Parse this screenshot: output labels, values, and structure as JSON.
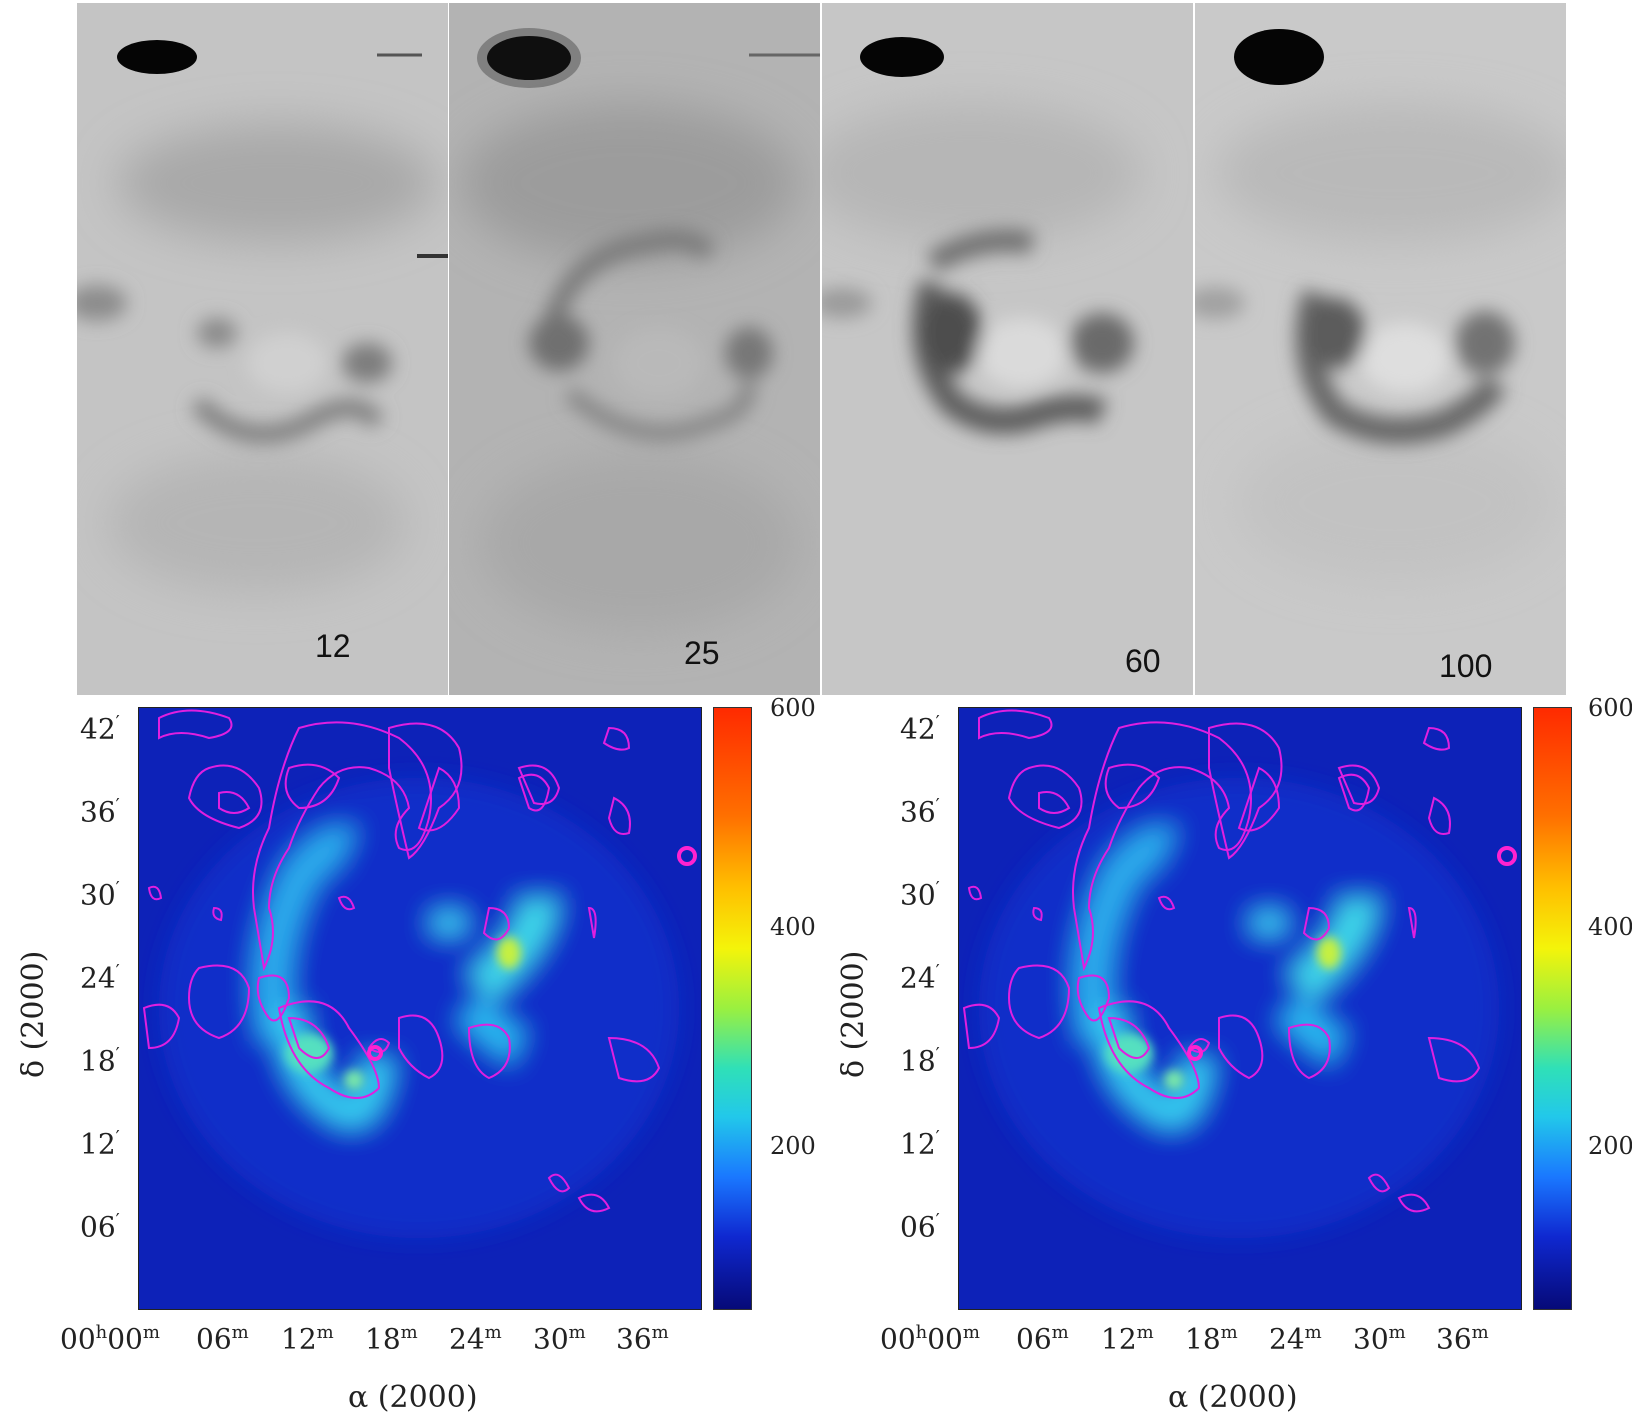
{
  "top_panels": {
    "labels": [
      "12",
      "25",
      "60",
      "100"
    ]
  },
  "maps": [
    {
      "y_ticks": [
        "42",
        "36",
        "30",
        "24",
        "18",
        "12",
        "06"
      ],
      "x_ticks": [
        {
          "main": "00",
          "sup1": "h",
          "tail": "00",
          "sup2": "m"
        },
        {
          "main": "06",
          "sup1": "m"
        },
        {
          "main": "12",
          "sup1": "m"
        },
        {
          "main": "18",
          "sup1": "m"
        },
        {
          "main": "24",
          "sup1": "m"
        },
        {
          "main": "30",
          "sup1": "m"
        },
        {
          "main": "36",
          "sup1": "m"
        }
      ],
      "y_label": "δ (2000)",
      "x_label": "α (2000)",
      "colorbar": [
        "600",
        "400",
        "200"
      ]
    },
    {
      "y_ticks": [
        "42",
        "36",
        "30",
        "24",
        "18",
        "12",
        "06"
      ],
      "x_ticks": [
        {
          "main": "00",
          "sup1": "h",
          "tail": "00",
          "sup2": "m"
        },
        {
          "main": "06",
          "sup1": "m"
        },
        {
          "main": "12",
          "sup1": "m"
        },
        {
          "main": "18",
          "sup1": "m"
        },
        {
          "main": "24",
          "sup1": "m"
        },
        {
          "main": "30",
          "sup1": "m"
        },
        {
          "main": "36",
          "sup1": "m"
        }
      ],
      "y_label": "δ (2000)",
      "x_label": "α (2000)",
      "colorbar": [
        "600",
        "400",
        "200"
      ]
    }
  ],
  "colors": {
    "contour": "#e01fe0",
    "map_background": "#0d22b8",
    "emission": "#3fd2f0"
  }
}
